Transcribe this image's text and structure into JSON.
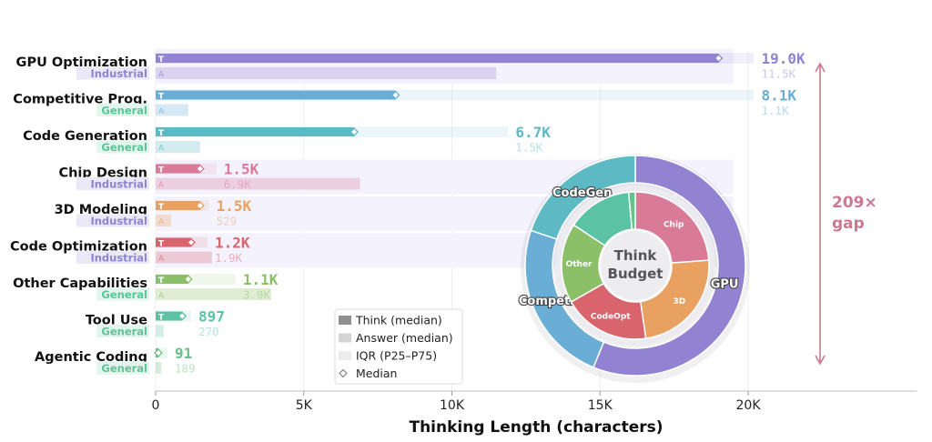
{
  "chart_data": {
    "type": "bar",
    "orientation": "horizontal",
    "xlabel": "Thinking Length (characters)",
    "xlim": [
      0,
      25700
    ],
    "xticks": [
      0,
      5000,
      10000,
      15000,
      20000
    ],
    "xtick_labels": [
      "0",
      "5K",
      "10K",
      "15K",
      "20K"
    ],
    "grid": "vertical",
    "think_marker": "T",
    "answer_marker": "A",
    "tags": {
      "Industrial": {
        "color": "#8e84d2",
        "bg": "#ebe8f8"
      },
      "General": {
        "color": "#5cc49a",
        "bg": "#e2f5ec"
      }
    },
    "categories": [
      {
        "name": "GPU Optimization",
        "tag": "Industrial",
        "color": "#9283d2",
        "think": 19000,
        "think_label": "19.0K",
        "iqr_end": 20200,
        "answer": 11500,
        "answer_label": "11.5K"
      },
      {
        "name": "Competitive Prog.",
        "tag": "General",
        "color": "#6aaed6",
        "think": 8100,
        "think_label": "8.1K",
        "iqr_end": 20200,
        "answer": 1100,
        "answer_label": "1.1K"
      },
      {
        "name": "Code Generation",
        "tag": "General",
        "color": "#5dbac4",
        "think": 6700,
        "think_label": "6.7K",
        "iqr_end": 11900,
        "answer": 1500,
        "answer_label": "1.5K"
      },
      {
        "name": "Chip Design",
        "tag": "Industrial",
        "color": "#d97a98",
        "think": 1500,
        "think_label": "1.5K",
        "iqr_end": 2050,
        "answer": 6900,
        "answer_label": "6.9K"
      },
      {
        "name": "3D Modeling",
        "tag": "Industrial",
        "color": "#e8a160",
        "think": 1500,
        "think_label": "1.5K",
        "iqr_end": 1800,
        "answer": 529,
        "answer_label": "529"
      },
      {
        "name": "Code Optimization",
        "tag": "Industrial",
        "color": "#d9646e",
        "think": 1200,
        "think_label": "1.2K",
        "iqr_end": 1750,
        "answer": 1900,
        "answer_label": "1.9K"
      },
      {
        "name": "Other Capabilities",
        "tag": "General",
        "color": "#8cc068",
        "think": 1100,
        "think_label": "1.1K",
        "iqr_end": 2700,
        "answer": 3900,
        "answer_label": "3.9K"
      },
      {
        "name": "Tool Use",
        "tag": "General",
        "color": "#5cc2a4",
        "think": 897,
        "think_label": "897",
        "iqr_end": 1200,
        "answer": 270,
        "answer_label": "270"
      },
      {
        "name": "Agentic Coding",
        "tag": "General",
        "color": "#6cbf86",
        "think": 91,
        "think_label": "91",
        "iqr_end": 400,
        "answer": 189,
        "answer_label": "189"
      }
    ],
    "legend": {
      "placement": "bottom-center",
      "items": [
        {
          "label": "Think (median)",
          "swatch": "#909090"
        },
        {
          "label": "Answer (median)",
          "swatch": "#d4d4d4"
        },
        {
          "label": "IQR (P25–P75)",
          "swatch": "#ececec"
        },
        {
          "label": "Median",
          "swatch": "diamond"
        }
      ]
    },
    "annotation": {
      "line1": "209×",
      "line2": "gap",
      "color": "#cc7890"
    },
    "inset_donut": {
      "type": "pie",
      "center_line1": "Think",
      "center_line2": "Budget",
      "outer": [
        {
          "label": "GPU",
          "value": 19000,
          "color": "#9283d2"
        },
        {
          "label": "Competitive",
          "value": 8100,
          "color": "#6aaed6"
        },
        {
          "label": "CodeGen",
          "value": 6700,
          "color": "#5dbac4"
        }
      ],
      "inner": [
        {
          "label": "Chip",
          "value": 1500,
          "color": "#d97a98"
        },
        {
          "label": "3D",
          "value": 1500,
          "color": "#e8a160"
        },
        {
          "label": "CodeOpt",
          "value": 1200,
          "color": "#d9646e"
        },
        {
          "label": "Other",
          "value": 1100,
          "color": "#8cc068"
        },
        {
          "label": "",
          "value": 897,
          "color": "#5cc2a4"
        },
        {
          "label": "",
          "value": 91,
          "color": "#6cbf86"
        }
      ]
    }
  }
}
